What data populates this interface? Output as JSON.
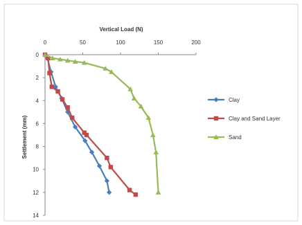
{
  "chart_data": {
    "type": "line",
    "title": "Vertical Load (N)",
    "xlabel": "Vertical Load (N)",
    "ylabel": "Settlement (mm)",
    "xlim": [
      0,
      200
    ],
    "ylim": [
      0,
      14
    ],
    "y_inverted": true,
    "x_axis_position": "top",
    "xticks": [
      "0",
      "50",
      "100",
      "150",
      "200"
    ],
    "yticks": [
      "0",
      "2",
      "4",
      "6",
      "8",
      "10",
      "12",
      "14"
    ],
    "grid": false,
    "legend_position": "right",
    "series": [
      {
        "name": "Clay",
        "color": "#4a7ebb",
        "marker": "diamond",
        "points": [
          [
            0,
            0
          ],
          [
            3,
            0.3
          ],
          [
            8,
            1.5
          ],
          [
            14,
            2.8
          ],
          [
            22,
            3.8
          ],
          [
            30,
            5.0
          ],
          [
            40,
            6.3
          ],
          [
            53,
            7.5
          ],
          [
            62,
            8.5
          ],
          [
            72,
            9.7
          ],
          [
            82,
            11.0
          ],
          [
            85,
            12.0
          ]
        ]
      },
      {
        "name": "Clay and Sand Layer",
        "color": "#be4b48",
        "marker": "square",
        "points": [
          [
            0,
            0
          ],
          [
            4,
            0.3
          ],
          [
            6,
            1.6
          ],
          [
            9,
            2.8
          ],
          [
            17,
            3.2
          ],
          [
            23,
            3.9
          ],
          [
            30,
            4.6
          ],
          [
            36,
            5.5
          ],
          [
            52,
            6.8
          ],
          [
            55,
            7.0
          ],
          [
            82,
            9.0
          ],
          [
            87,
            9.8
          ],
          [
            112,
            11.8
          ],
          [
            120,
            12.2
          ]
        ]
      },
      {
        "name": "Sand",
        "color": "#98b954",
        "marker": "triangle",
        "points": [
          [
            0,
            0
          ],
          [
            10,
            0.3
          ],
          [
            20,
            0.4
          ],
          [
            30,
            0.5
          ],
          [
            40,
            0.6
          ],
          [
            52,
            0.7
          ],
          [
            80,
            1.2
          ],
          [
            88,
            1.5
          ],
          [
            113,
            3.0
          ],
          [
            118,
            3.8
          ],
          [
            127,
            4.5
          ],
          [
            137,
            5.5
          ],
          [
            143,
            7.0
          ],
          [
            147,
            8.5
          ],
          [
            150,
            12.0
          ]
        ]
      }
    ]
  }
}
